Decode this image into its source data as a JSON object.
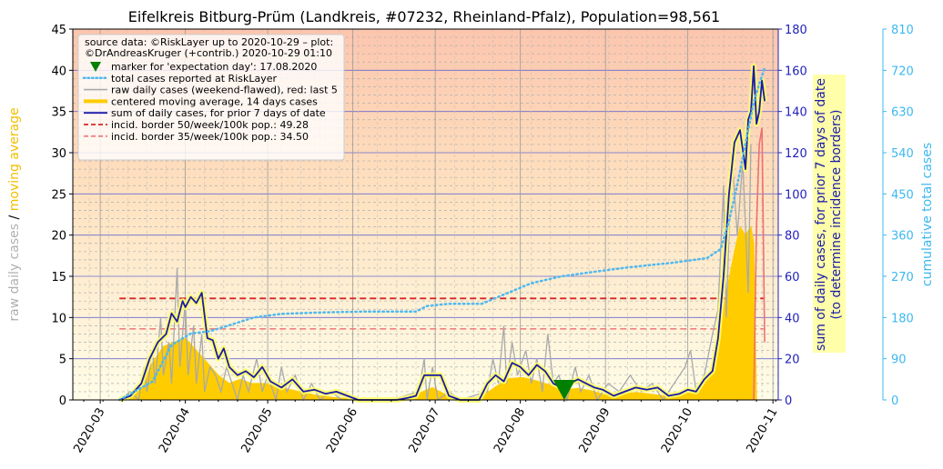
{
  "chart_data": {
    "type": "line",
    "title": "Eifelkreis Bitburg-Prüm (Landkreis, #07232, Rheinland-Pfalz), Population=98,561",
    "left_axis_label_parts": [
      "raw daily cases",
      " / ",
      "moving average"
    ],
    "right_axis_label_lines": [
      "sum of daily cases, for prior 7 days of date",
      "(to determine incidence borders)"
    ],
    "far_right_axis_label": "cumulative total cases",
    "grid": true,
    "legend_position": "top-left",
    "x_ticks": [
      "2020-03",
      "2020-04",
      "2020-05",
      "2020-06",
      "2020-07",
      "2020-08",
      "2020-09",
      "2020-10",
      "2020-11"
    ],
    "y_left": {
      "range": [
        0,
        45
      ],
      "ticks": [
        "0",
        "5",
        "10",
        "15",
        "20",
        "25",
        "30",
        "35",
        "40",
        "45"
      ]
    },
    "y_right": {
      "range": [
        0,
        180
      ],
      "ticks": [
        "0",
        "20",
        "40",
        "60",
        "80",
        "100",
        "120",
        "140",
        "160",
        "180"
      ]
    },
    "y_far_right": {
      "range": [
        0,
        810
      ],
      "ticks": [
        "0",
        "90",
        "180",
        "270",
        "360",
        "450",
        "540",
        "630",
        "720",
        "810"
      ]
    },
    "legend": {
      "header_lines": [
        "source data: ©RiskLayer up to 2020-10-29 – plot:",
        "©DrAndreasKruger (+contrib.) 2020-10-29 01:10"
      ],
      "items": [
        {
          "label": "marker for 'expectation day': 17.08.2020",
          "kind": "marker"
        },
        {
          "label": "total cases reported at RiskLayer",
          "kind": "dotted"
        },
        {
          "label": "raw daily cases (weekend-flawed), red: last 5",
          "kind": "gray"
        },
        {
          "label": "centered moving average, 14 days cases",
          "kind": "gold"
        },
        {
          "label": "sum of daily cases, for prior 7 days of date",
          "kind": "navy"
        },
        {
          "label": "incid. border 50/week/100k pop.: 49.28",
          "kind": "reddash"
        },
        {
          "label": "incid. border 35/week/100k pop.: 34.50",
          "kind": "pinkdash"
        }
      ]
    },
    "start_date": "2020-03-08",
    "expectation_day": "2020-08-17",
    "incidence_borders": {
      "border_50": 49.28,
      "border_35": 34.5
    },
    "weekly_sum_keypoints": [
      [
        "2020-03-08",
        0
      ],
      [
        "2020-03-12",
        2
      ],
      [
        "2020-03-16",
        8
      ],
      [
        "2020-03-19",
        20
      ],
      [
        "2020-03-22",
        28
      ],
      [
        "2020-03-25",
        32
      ],
      [
        "2020-03-27",
        42
      ],
      [
        "2020-03-29",
        38
      ],
      [
        "2020-03-31",
        48
      ],
      [
        "2020-04-01",
        45
      ],
      [
        "2020-04-03",
        50
      ],
      [
        "2020-04-05",
        47
      ],
      [
        "2020-04-07",
        52
      ],
      [
        "2020-04-09",
        30
      ],
      [
        "2020-04-11",
        29
      ],
      [
        "2020-04-13",
        20
      ],
      [
        "2020-04-15",
        25
      ],
      [
        "2020-04-17",
        16
      ],
      [
        "2020-04-20",
        12
      ],
      [
        "2020-04-23",
        14
      ],
      [
        "2020-04-26",
        11
      ],
      [
        "2020-04-29",
        16
      ],
      [
        "2020-05-02",
        9
      ],
      [
        "2020-05-06",
        6
      ],
      [
        "2020-05-10",
        10
      ],
      [
        "2020-05-14",
        4
      ],
      [
        "2020-05-18",
        5
      ],
      [
        "2020-05-22",
        3
      ],
      [
        "2020-05-26",
        4
      ],
      [
        "2020-05-30",
        2
      ],
      [
        "2020-06-03",
        0
      ],
      [
        "2020-06-10",
        0
      ],
      [
        "2020-06-17",
        0
      ],
      [
        "2020-06-21",
        1
      ],
      [
        "2020-06-24",
        2
      ],
      [
        "2020-06-27",
        12
      ],
      [
        "2020-06-30",
        12
      ],
      [
        "2020-07-03",
        12
      ],
      [
        "2020-07-06",
        2
      ],
      [
        "2020-07-10",
        0
      ],
      [
        "2020-07-17",
        0
      ],
      [
        "2020-07-20",
        8
      ],
      [
        "2020-07-23",
        12
      ],
      [
        "2020-07-26",
        9
      ],
      [
        "2020-07-29",
        18
      ],
      [
        "2020-08-01",
        16
      ],
      [
        "2020-08-04",
        12
      ],
      [
        "2020-08-07",
        17
      ],
      [
        "2020-08-10",
        14
      ],
      [
        "2020-08-13",
        8
      ],
      [
        "2020-08-16",
        6
      ],
      [
        "2020-08-19",
        8
      ],
      [
        "2020-08-22",
        10
      ],
      [
        "2020-08-25",
        8
      ],
      [
        "2020-08-28",
        6
      ],
      [
        "2020-08-31",
        5
      ],
      [
        "2020-09-04",
        2
      ],
      [
        "2020-09-08",
        4
      ],
      [
        "2020-09-12",
        6
      ],
      [
        "2020-09-16",
        5
      ],
      [
        "2020-09-20",
        6
      ],
      [
        "2020-09-24",
        2
      ],
      [
        "2020-09-28",
        3
      ],
      [
        "2020-10-01",
        5
      ],
      [
        "2020-10-04",
        4
      ],
      [
        "2020-10-07",
        10
      ],
      [
        "2020-10-10",
        14
      ],
      [
        "2020-10-12",
        30
      ],
      [
        "2020-10-14",
        60
      ],
      [
        "2020-10-16",
        100
      ],
      [
        "2020-10-18",
        125
      ],
      [
        "2020-10-20",
        131
      ],
      [
        "2020-10-22",
        112
      ],
      [
        "2020-10-23",
        136
      ],
      [
        "2020-10-24",
        140
      ],
      [
        "2020-10-25",
        162
      ],
      [
        "2020-10-26",
        134
      ],
      [
        "2020-10-27",
        140
      ],
      [
        "2020-10-28",
        155
      ],
      [
        "2020-10-29",
        145
      ]
    ],
    "moving_average_keypoints": [
      [
        "2020-03-08",
        0
      ],
      [
        "2020-03-12",
        0.5
      ],
      [
        "2020-03-16",
        2
      ],
      [
        "2020-03-20",
        4.5
      ],
      [
        "2020-03-24",
        6.5
      ],
      [
        "2020-03-28",
        7
      ],
      [
        "2020-04-01",
        7.5
      ],
      [
        "2020-04-05",
        6
      ],
      [
        "2020-04-09",
        4.5
      ],
      [
        "2020-04-13",
        3
      ],
      [
        "2020-04-17",
        2
      ],
      [
        "2020-04-21",
        2.5
      ],
      [
        "2020-04-25",
        2
      ],
      [
        "2020-04-30",
        2
      ],
      [
        "2020-05-05",
        1.5
      ],
      [
        "2020-05-10",
        1.2
      ],
      [
        "2020-05-15",
        0.8
      ],
      [
        "2020-05-20",
        0.5
      ],
      [
        "2020-05-25",
        0.3
      ],
      [
        "2020-06-01",
        0.1
      ],
      [
        "2020-06-10",
        0
      ],
      [
        "2020-06-20",
        0.1
      ],
      [
        "2020-06-25",
        0.8
      ],
      [
        "2020-06-30",
        1.5
      ],
      [
        "2020-07-05",
        0.6
      ],
      [
        "2020-07-10",
        0
      ],
      [
        "2020-07-18",
        0.4
      ],
      [
        "2020-07-23",
        1.6
      ],
      [
        "2020-07-28",
        2.6
      ],
      [
        "2020-08-02",
        2.7
      ],
      [
        "2020-08-07",
        2.3
      ],
      [
        "2020-08-12",
        1.8
      ],
      [
        "2020-08-17",
        1.2
      ],
      [
        "2020-08-22",
        1.4
      ],
      [
        "2020-08-27",
        1.1
      ],
      [
        "2020-09-01",
        0.6
      ],
      [
        "2020-09-06",
        0.7
      ],
      [
        "2020-09-12",
        0.9
      ],
      [
        "2020-09-18",
        0.7
      ],
      [
        "2020-09-25",
        0.4
      ],
      [
        "2020-10-01",
        0.8
      ],
      [
        "2020-10-05",
        1.2
      ],
      [
        "2020-10-09",
        3
      ],
      [
        "2020-10-12",
        7
      ],
      [
        "2020-10-15",
        13
      ],
      [
        "2020-10-18",
        18
      ],
      [
        "2020-10-20",
        21
      ],
      [
        "2020-10-22",
        20
      ],
      [
        "2020-10-24",
        21
      ],
      [
        "2020-10-25",
        19
      ],
      [
        "2020-10-26",
        0
      ]
    ],
    "cumulative_total_keypoints": [
      [
        "2020-03-08",
        0
      ],
      [
        "2020-03-20",
        40
      ],
      [
        "2020-03-27",
        120
      ],
      [
        "2020-04-03",
        145
      ],
      [
        "2020-04-10",
        150
      ],
      [
        "2020-04-18",
        165
      ],
      [
        "2020-04-26",
        180
      ],
      [
        "2020-05-06",
        188
      ],
      [
        "2020-05-20",
        191
      ],
      [
        "2020-06-05",
        193
      ],
      [
        "2020-06-24",
        193
      ],
      [
        "2020-06-28",
        205
      ],
      [
        "2020-07-06",
        210
      ],
      [
        "2020-07-18",
        210
      ],
      [
        "2020-07-26",
        230
      ],
      [
        "2020-08-05",
        255
      ],
      [
        "2020-08-16",
        270
      ],
      [
        "2020-08-28",
        280
      ],
      [
        "2020-09-10",
        290
      ],
      [
        "2020-09-26",
        300
      ],
      [
        "2020-10-08",
        310
      ],
      [
        "2020-10-13",
        330
      ],
      [
        "2020-10-16",
        390
      ],
      [
        "2020-10-19",
        470
      ],
      [
        "2020-10-22",
        560
      ],
      [
        "2020-10-25",
        650
      ],
      [
        "2020-10-27",
        690
      ],
      [
        "2020-10-29",
        725
      ]
    ],
    "raw_daily_spikes": [
      [
        "2020-03-08",
        0
      ],
      [
        "2020-03-12",
        1
      ],
      [
        "2020-03-15",
        0
      ],
      [
        "2020-03-17",
        4
      ],
      [
        "2020-03-18",
        1
      ],
      [
        "2020-03-20",
        6
      ],
      [
        "2020-03-21",
        2
      ],
      [
        "2020-03-23",
        10
      ],
      [
        "2020-03-24",
        3
      ],
      [
        "2020-03-26",
        7
      ],
      [
        "2020-03-27",
        2
      ],
      [
        "2020-03-29",
        16
      ],
      [
        "2020-03-30",
        4
      ],
      [
        "2020-04-01",
        12
      ],
      [
        "2020-04-02",
        3
      ],
      [
        "2020-04-04",
        9
      ],
      [
        "2020-04-05",
        2
      ],
      [
        "2020-04-07",
        8
      ],
      [
        "2020-04-08",
        1
      ],
      [
        "2020-04-10",
        4
      ],
      [
        "2020-04-12",
        3
      ],
      [
        "2020-04-14",
        1
      ],
      [
        "2020-04-16",
        4
      ],
      [
        "2020-04-18",
        2
      ],
      [
        "2020-04-20",
        0
      ],
      [
        "2020-04-22",
        3
      ],
      [
        "2020-04-24",
        1
      ],
      [
        "2020-04-27",
        5
      ],
      [
        "2020-04-29",
        1
      ],
      [
        "2020-05-01",
        3
      ],
      [
        "2020-05-04",
        0
      ],
      [
        "2020-05-06",
        4
      ],
      [
        "2020-05-08",
        1
      ],
      [
        "2020-05-11",
        3
      ],
      [
        "2020-05-14",
        0
      ],
      [
        "2020-05-17",
        2
      ],
      [
        "2020-05-20",
        0
      ],
      [
        "2020-05-24",
        1
      ],
      [
        "2020-05-28",
        0
      ],
      [
        "2020-06-02",
        0
      ],
      [
        "2020-06-15",
        0
      ],
      [
        "2020-06-25",
        1
      ],
      [
        "2020-06-27",
        5
      ],
      [
        "2020-06-28",
        0
      ],
      [
        "2020-06-30",
        4
      ],
      [
        "2020-07-02",
        0
      ],
      [
        "2020-07-06",
        1
      ],
      [
        "2020-07-10",
        0
      ],
      [
        "2020-07-20",
        1
      ],
      [
        "2020-07-22",
        5
      ],
      [
        "2020-07-24",
        2
      ],
      [
        "2020-07-26",
        9
      ],
      [
        "2020-07-27",
        2
      ],
      [
        "2020-07-29",
        7
      ],
      [
        "2020-07-31",
        3
      ],
      [
        "2020-08-03",
        6
      ],
      [
        "2020-08-05",
        2
      ],
      [
        "2020-08-07",
        5
      ],
      [
        "2020-08-09",
        1
      ],
      [
        "2020-08-11",
        8
      ],
      [
        "2020-08-13",
        2
      ],
      [
        "2020-08-15",
        3
      ],
      [
        "2020-08-18",
        0
      ],
      [
        "2020-08-21",
        4
      ],
      [
        "2020-08-23",
        1
      ],
      [
        "2020-08-26",
        3
      ],
      [
        "2020-08-29",
        0
      ],
      [
        "2020-09-02",
        2
      ],
      [
        "2020-09-06",
        1
      ],
      [
        "2020-09-10",
        3
      ],
      [
        "2020-09-14",
        1
      ],
      [
        "2020-09-18",
        2
      ],
      [
        "2020-09-22",
        0
      ],
      [
        "2020-09-26",
        2
      ],
      [
        "2020-09-30",
        4
      ],
      [
        "2020-10-02",
        6
      ],
      [
        "2020-10-04",
        1
      ],
      [
        "2020-10-07",
        3
      ],
      [
        "2020-10-10",
        8
      ],
      [
        "2020-10-12",
        11
      ],
      [
        "2020-10-14",
        26
      ],
      [
        "2020-10-15",
        10
      ],
      [
        "2020-10-17",
        30
      ],
      [
        "2020-10-19",
        20
      ],
      [
        "2020-10-21",
        29
      ],
      [
        "2020-10-23",
        13
      ],
      [
        "2020-10-24",
        31
      ]
    ],
    "raw_last5": [
      [
        "2020-10-25",
        0
      ],
      [
        "2020-10-26",
        21
      ],
      [
        "2020-10-27",
        31
      ],
      [
        "2020-10-28",
        33
      ],
      [
        "2020-10-29",
        7
      ]
    ]
  },
  "colors": {
    "gold": "#ffcc00",
    "navy": "#1b1ba8",
    "skyblue": "#4fb8f0",
    "gray": "#a9a9a9",
    "red": "#d62728",
    "pink": "#f08080",
    "marker": "#008000",
    "axis_blue": "#2222bb",
    "axis_sky": "#3cb8f0",
    "left_gray": "#b0b0b0",
    "left_gold": "#f0c000",
    "label_box": "#ffffaa"
  }
}
